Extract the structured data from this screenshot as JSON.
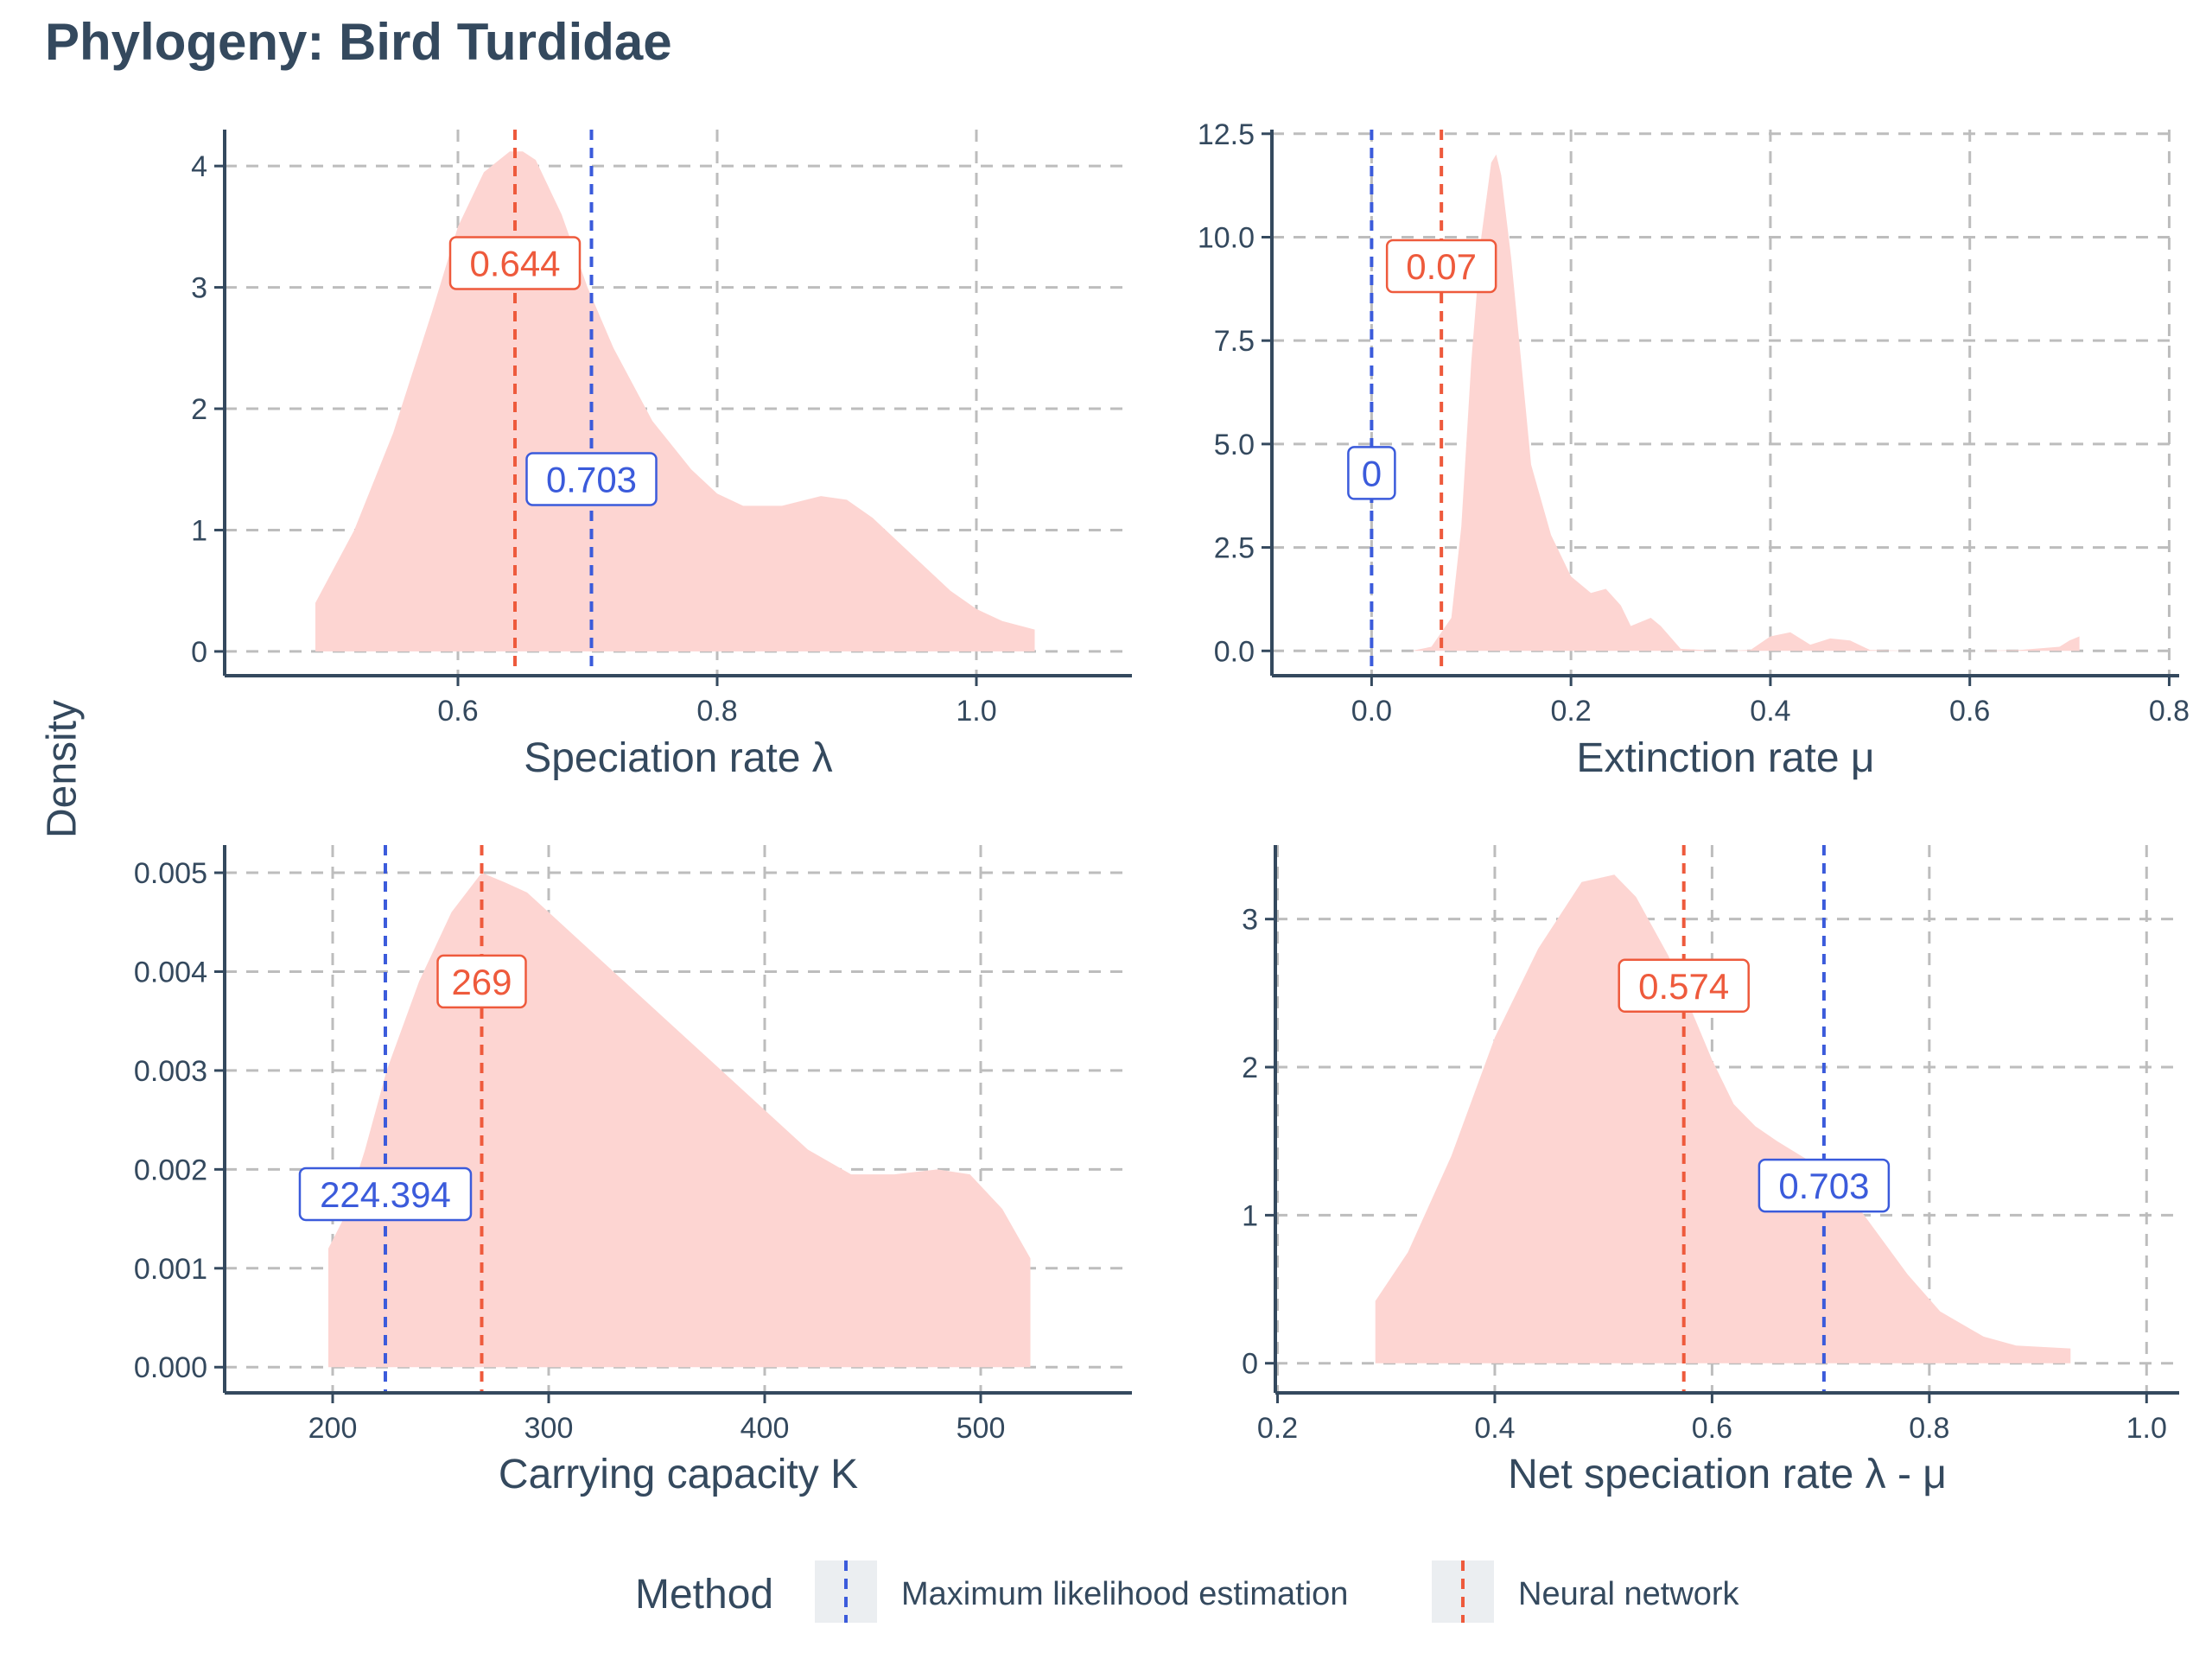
{
  "title": "Phylogeny: Bird Turdidae",
  "y_axis_label": "Density",
  "colors": {
    "mle": "#3b5bdb",
    "nn": "#ee5a3c",
    "density_fill": "#fdd5d2",
    "grid": "#bdbdbd",
    "axis": "#34495e",
    "text": "#34495e"
  },
  "legend": {
    "title": "Method",
    "items": [
      {
        "label": "Maximum likelihood estimation",
        "color": "#3b5bdb"
      },
      {
        "label": "Neural network",
        "color": "#ee5a3c"
      }
    ]
  },
  "chart_data": [
    {
      "type": "area",
      "xlabel": "Speciation rate λ",
      "xlim": [
        0.42,
        1.12
      ],
      "ylim": [
        -0.2,
        4.3
      ],
      "xticks": [
        0.6,
        0.8,
        1.0
      ],
      "xtick_labels": [
        "0.6",
        "0.8",
        "1.0"
      ],
      "yticks": [
        0,
        1,
        2,
        3,
        4
      ],
      "ytick_labels": [
        "0",
        "1",
        "2",
        "3",
        "4"
      ],
      "density": {
        "x": [
          0.49,
          0.49,
          0.52,
          0.55,
          0.58,
          0.6,
          0.62,
          0.64,
          0.65,
          0.66,
          0.68,
          0.7,
          0.72,
          0.75,
          0.78,
          0.8,
          0.82,
          0.85,
          0.88,
          0.9,
          0.92,
          0.95,
          0.98,
          1.0,
          1.02,
          1.045,
          1.045
        ],
        "y": [
          0,
          0.4,
          1.0,
          1.8,
          2.8,
          3.5,
          3.95,
          4.12,
          4.12,
          4.05,
          3.6,
          3.0,
          2.5,
          1.9,
          1.5,
          1.3,
          1.2,
          1.2,
          1.28,
          1.25,
          1.1,
          0.8,
          0.5,
          0.35,
          0.25,
          0.18,
          0
        ]
      },
      "nn": {
        "value": 0.644,
        "label": "0.644",
        "label_y": 3.2
      },
      "mle": {
        "value": 0.703,
        "label": "0.703",
        "label_y": 1.42
      }
    },
    {
      "type": "area",
      "xlabel": "Extinction rate μ",
      "xlim": [
        -0.1,
        0.81
      ],
      "ylim": [
        -0.6,
        12.6
      ],
      "xticks": [
        0.0,
        0.2,
        0.4,
        0.6,
        0.8
      ],
      "xtick_labels": [
        "0.0",
        "0.2",
        "0.4",
        "0.6",
        "0.8"
      ],
      "yticks": [
        0,
        2.5,
        5,
        7.5,
        10,
        12.5
      ],
      "ytick_labels": [
        "0.0",
        "2.5",
        "5.0",
        "7.5",
        "10.0",
        "12.5"
      ],
      "density": {
        "x": [
          0.04,
          0.06,
          0.08,
          0.09,
          0.1,
          0.11,
          0.12,
          0.125,
          0.13,
          0.14,
          0.15,
          0.16,
          0.18,
          0.2,
          0.22,
          0.235,
          0.25,
          0.26,
          0.28,
          0.29,
          0.31,
          0.35,
          0.38,
          0.4,
          0.42,
          0.44,
          0.46,
          0.48,
          0.5,
          0.55,
          0.6,
          0.65,
          0.69,
          0.7,
          0.71,
          0.71
        ],
        "y": [
          0,
          0.1,
          0.8,
          3.0,
          7.0,
          10.0,
          11.8,
          12.0,
          11.5,
          9.5,
          7.0,
          4.5,
          2.8,
          1.8,
          1.4,
          1.5,
          1.1,
          0.6,
          0.8,
          0.6,
          0.05,
          0,
          0.02,
          0.35,
          0.45,
          0.15,
          0.3,
          0.25,
          0.02,
          0,
          0,
          0.02,
          0.1,
          0.25,
          0.35,
          0
        ]
      },
      "nn": {
        "value": 0.07,
        "label": "0.07",
        "label_y": 9.3
      },
      "mle": {
        "value": 0.0,
        "label": "0",
        "label_y": 4.3
      }
    },
    {
      "type": "area",
      "xlabel": "Carrying capacity K",
      "xlim": [
        150,
        570
      ],
      "ylim": [
        -0.00026,
        0.00528
      ],
      "xticks": [
        200,
        300,
        400,
        500
      ],
      "xtick_labels": [
        "200",
        "300",
        "400",
        "500"
      ],
      "yticks": [
        0,
        0.001,
        0.002,
        0.003,
        0.004,
        0.005
      ],
      "ytick_labels": [
        "0.000",
        "0.001",
        "0.002",
        "0.003",
        "0.004",
        "0.005"
      ],
      "density": {
        "x": [
          198,
          198,
          205,
          215,
          225,
          240,
          255,
          269,
          280,
          290,
          300,
          320,
          350,
          380,
          400,
          420,
          440,
          460,
          480,
          495,
          510,
          523,
          523
        ],
        "y": [
          0,
          0.0012,
          0.0015,
          0.0022,
          0.003,
          0.0039,
          0.0046,
          0.005,
          0.0049,
          0.0048,
          0.0046,
          0.0042,
          0.0036,
          0.003,
          0.0026,
          0.0022,
          0.00195,
          0.00195,
          0.002,
          0.00195,
          0.0016,
          0.0011,
          0
        ]
      },
      "nn": {
        "value": 269,
        "label": "269",
        "label_y": 0.0039
      },
      "mle": {
        "value": 224.394,
        "label": "224.394",
        "label_y": 0.00175
      }
    },
    {
      "type": "area",
      "xlabel": "Net speciation rate λ - μ",
      "xlim": [
        0.198,
        1.03
      ],
      "ylim": [
        -0.2,
        3.5
      ],
      "xticks": [
        0.2,
        0.4,
        0.6,
        0.8,
        1.0
      ],
      "xtick_labels": [
        "0.2",
        "0.4",
        "0.6",
        "0.8",
        "1.0"
      ],
      "yticks": [
        0,
        1,
        2,
        3
      ],
      "ytick_labels": [
        "0",
        "1",
        "2",
        "3"
      ],
      "density": {
        "x": [
          0.29,
          0.29,
          0.32,
          0.36,
          0.4,
          0.44,
          0.48,
          0.51,
          0.53,
          0.56,
          0.58,
          0.6,
          0.62,
          0.64,
          0.66,
          0.7,
          0.72,
          0.75,
          0.78,
          0.81,
          0.85,
          0.88,
          0.93,
          0.93
        ],
        "y": [
          0,
          0.42,
          0.75,
          1.4,
          2.2,
          2.8,
          3.25,
          3.3,
          3.15,
          2.75,
          2.4,
          2.05,
          1.75,
          1.6,
          1.5,
          1.32,
          1.2,
          0.9,
          0.6,
          0.35,
          0.18,
          0.12,
          0.1,
          0
        ]
      },
      "nn": {
        "value": 0.574,
        "label": "0.574",
        "label_y": 2.55
      },
      "mle": {
        "value": 0.703,
        "label": "0.703",
        "label_y": 1.2
      }
    }
  ]
}
